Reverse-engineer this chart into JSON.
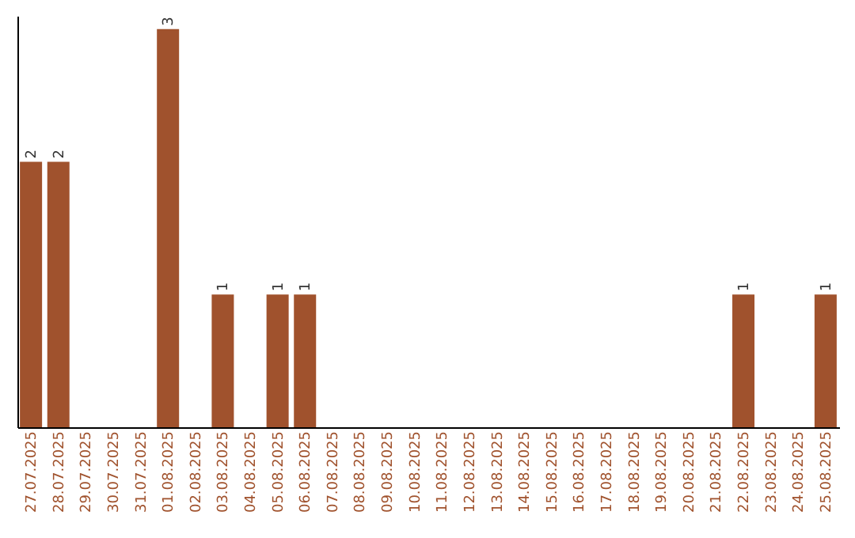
{
  "chart_data": {
    "type": "bar",
    "categories": [
      "27.07.2025",
      "28.07.2025",
      "29.07.2025",
      "30.07.2025",
      "31.07.2025",
      "01.08.2025",
      "02.08.2025",
      "03.08.2025",
      "04.08.2025",
      "05.08.2025",
      "06.08.2025",
      "07.08.2025",
      "08.08.2025",
      "09.08.2025",
      "10.08.2025",
      "11.08.2025",
      "12.08.2025",
      "13.08.2025",
      "14.08.2025",
      "15.08.2025",
      "16.08.2025",
      "17.08.2025",
      "18.08.2025",
      "19.08.2025",
      "20.08.2025",
      "21.08.2025",
      "22.08.2025",
      "23.08.2025",
      "24.08.2025",
      "25.08.2025"
    ],
    "values": [
      2,
      2,
      0,
      0,
      0,
      3,
      0,
      1,
      0,
      1,
      1,
      0,
      0,
      0,
      0,
      0,
      0,
      0,
      0,
      0,
      0,
      0,
      0,
      0,
      0,
      0,
      1,
      0,
      0,
      1
    ],
    "value_labels": [
      "2",
      "2",
      null,
      null,
      null,
      "3",
      null,
      "1",
      null,
      "1",
      "1",
      null,
      null,
      null,
      null,
      null,
      null,
      null,
      null,
      null,
      null,
      null,
      null,
      null,
      null,
      null,
      "1",
      null,
      null,
      "1"
    ],
    "color": "#a0522d",
    "ylim": [
      0,
      3.1
    ],
    "tick_labels": "x",
    "grid": false
  }
}
